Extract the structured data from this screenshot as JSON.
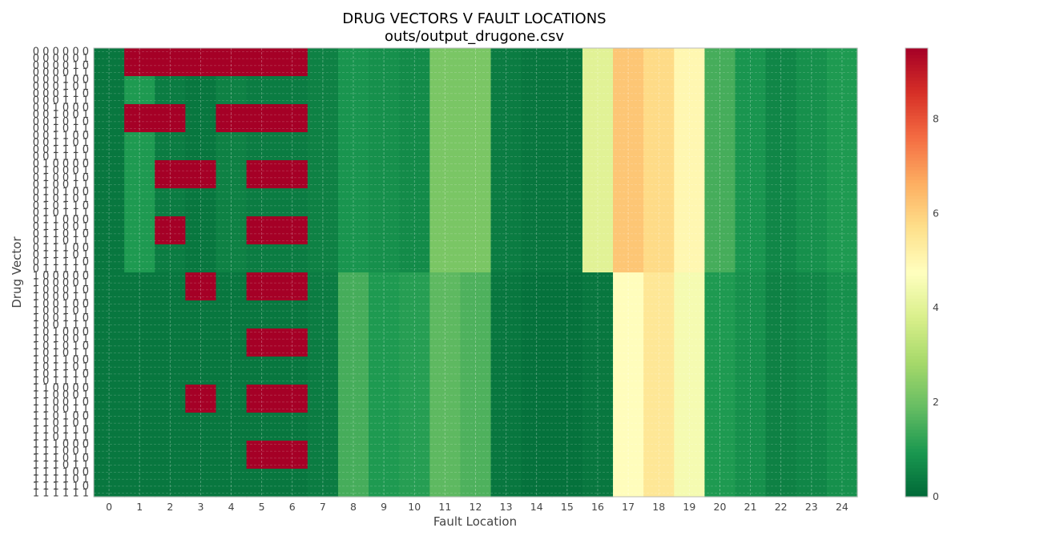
{
  "chart_data": {
    "type": "heatmap",
    "title": "DRUG VECTORS V FAULT LOCATIONS",
    "subtitle": "outs/output_drugone.csv",
    "xlabel": "Fault Location",
    "ylabel": "Drug Vector",
    "x_ticks": [
      "0",
      "1",
      "2",
      "3",
      "4",
      "5",
      "6",
      "7",
      "8",
      "9",
      "10",
      "11",
      "12",
      "13",
      "14",
      "15",
      "16",
      "17",
      "18",
      "19",
      "20",
      "21",
      "22",
      "23",
      "24"
    ],
    "y_ticks": [
      "0 0 0 0 0 0",
      "0 0 0 0 0 1",
      "0 0 0 0 1 0",
      "0 0 0 0 1 1",
      "0 0 0 1 0 0",
      "0 0 0 1 0 1",
      "0 0 0 1 1 0",
      "0 0 0 1 1 1",
      "0 0 1 0 0 0",
      "0 0 1 0 0 1",
      "0 0 1 0 1 0",
      "0 0 1 0 1 1",
      "0 0 1 1 0 0",
      "0 0 1 1 0 1",
      "0 0 1 1 1 0",
      "0 0 1 1 1 1",
      "0 1 0 0 0 0",
      "0 1 0 0 0 1",
      "0 1 0 0 1 0",
      "0 1 0 0 1 1",
      "0 1 0 1 0 0",
      "0 1 0 1 0 1",
      "0 1 0 1 1 0",
      "0 1 0 1 1 1",
      "0 1 1 0 0 0",
      "0 1 1 0 0 1",
      "0 1 1 0 1 0",
      "0 1 1 0 1 1",
      "0 1 1 1 0 0",
      "0 1 1 1 0 1",
      "0 1 1 1 1 0",
      "0 1 1 1 1 1",
      "1 0 0 0 0 0",
      "1 0 0 0 0 1",
      "1 0 0 0 1 0",
      "1 0 0 0 1 1",
      "1 0 0 1 0 0",
      "1 0 0 1 0 1",
      "1 0 0 1 1 0",
      "1 0 0 1 1 1",
      "1 0 1 0 0 0",
      "1 0 1 0 0 1",
      "1 0 1 0 1 0",
      "1 0 1 0 1 1",
      "1 0 1 1 0 0",
      "1 0 1 1 0 1",
      "1 0 1 1 1 0",
      "1 0 1 1 1 1",
      "1 1 0 0 0 0",
      "1 1 0 0 0 1",
      "1 1 0 0 1 0",
      "1 1 0 0 1 1",
      "1 1 0 1 0 0",
      "1 1 0 1 0 1",
      "1 1 0 1 1 0",
      "1 1 0 1 1 1",
      "1 1 1 0 0 0",
      "1 1 1 0 0 1",
      "1 1 1 0 1 0",
      "1 1 1 0 1 1",
      "1 1 1 1 0 0",
      "1 1 1 1 0 1",
      "1 1 1 1 1 0",
      "1 1 1 1 1 1"
    ],
    "colorbar": {
      "ticks": [
        0,
        2,
        4,
        6,
        8
      ],
      "min": 0,
      "max": 9.5,
      "colormap": "RdYlGn_r"
    },
    "grid": true,
    "interpolation": "bicubic",
    "value_model": {
      "columns_0_to_24_low_rows": [
        0.3,
        1.0,
        0.4,
        0.3,
        0.5,
        0.4,
        0.4,
        0.5,
        0.9,
        0.8,
        0.7,
        2.2,
        2.2,
        0.4,
        0.3,
        0.3,
        4.0,
        6.2,
        5.8,
        5.0,
        1.5,
        0.9,
        0.6,
        0.8,
        1.0
      ],
      "columns_0_to_24_high_rows": [
        0.3,
        0.3,
        0.3,
        0.3,
        0.3,
        0.3,
        0.3,
        0.4,
        1.5,
        1.0,
        1.1,
        1.8,
        1.6,
        0.3,
        0.2,
        0.2,
        0.3,
        4.8,
        5.5,
        4.5,
        1.0,
        0.8,
        0.5,
        0.6,
        0.8
      ],
      "hot_value": 9.5,
      "row_blocks": [
        {
          "rows": [
            0,
            3
          ],
          "hot_columns": [
            1,
            2,
            3,
            4,
            5,
            6
          ]
        },
        {
          "rows": [
            8,
            11
          ],
          "hot_columns": [
            1,
            2,
            4,
            5,
            6
          ]
        },
        {
          "rows": [
            16,
            19
          ],
          "hot_columns": [
            2,
            3,
            5,
            6
          ]
        },
        {
          "rows": [
            24,
            27
          ],
          "hot_columns": [
            2,
            5,
            6
          ]
        },
        {
          "rows": [
            32,
            35
          ],
          "hot_columns": [
            3,
            5,
            6
          ]
        },
        {
          "rows": [
            40,
            43
          ],
          "hot_columns": [
            5,
            6
          ]
        },
        {
          "rows": [
            48,
            51
          ],
          "hot_columns": [
            3,
            5,
            6
          ]
        },
        {
          "rows": [
            56,
            59
          ],
          "hot_columns": [
            5,
            6
          ]
        }
      ]
    }
  }
}
